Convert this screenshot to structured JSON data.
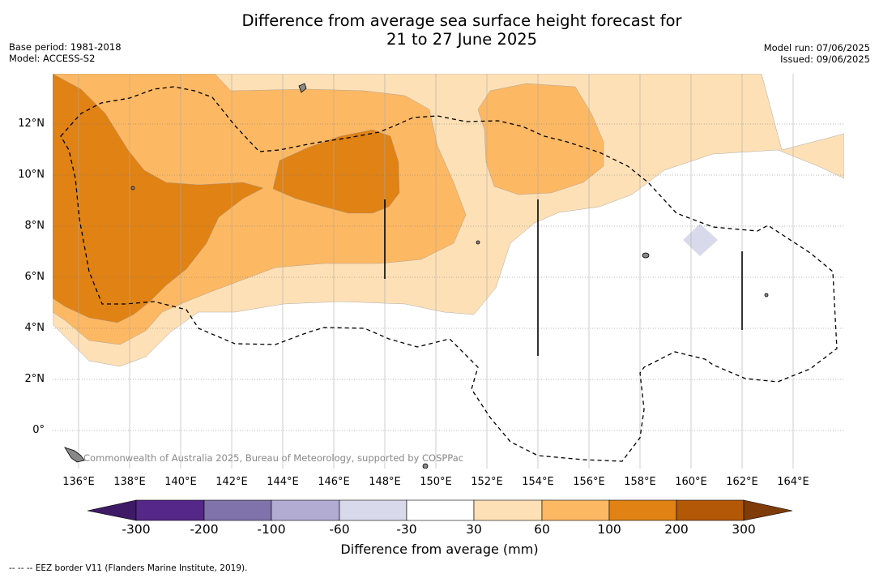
{
  "title_line1": "Difference from average sea surface height forecast for",
  "title_line2": "21 to 27 June 2025",
  "base_period": "Base period: 1981-2018",
  "model": "Model: ACCESS-S2",
  "model_run": "Model run: 07/06/2025",
  "issued": "Issued: 09/06/2025",
  "lat_labels": [
    "12°N",
    "10°N",
    "8°N",
    "6°N",
    "4°N",
    "2°N",
    "0°"
  ],
  "lon_labels": [
    "136°E",
    "138°E",
    "140°E",
    "142°E",
    "144°E",
    "146°E",
    "148°E",
    "150°E",
    "152°E",
    "154°E",
    "156°E",
    "158°E",
    "160°E",
    "162°E",
    "164°E"
  ],
  "credit": "Commonwealth of Australia 2025, Bureau of Meteorology, supported by COSPPac",
  "colorbar": {
    "label": "Difference from average (mm)",
    "ticks": [
      "-300",
      "-200",
      "-100",
      "-60",
      "-30",
      "30",
      "60",
      "100",
      "200",
      "300"
    ],
    "colors": [
      "#3f1a66",
      "#542788",
      "#8073ac",
      "#b2abd2",
      "#d8daeb",
      "#ffffff",
      "#fee0b6",
      "#fdb863",
      "#e08214",
      "#b35806",
      "#7f3b08"
    ]
  },
  "footer": "--  --  -- EEZ border V11 (Flanders Marine Institute, 2019)."
}
